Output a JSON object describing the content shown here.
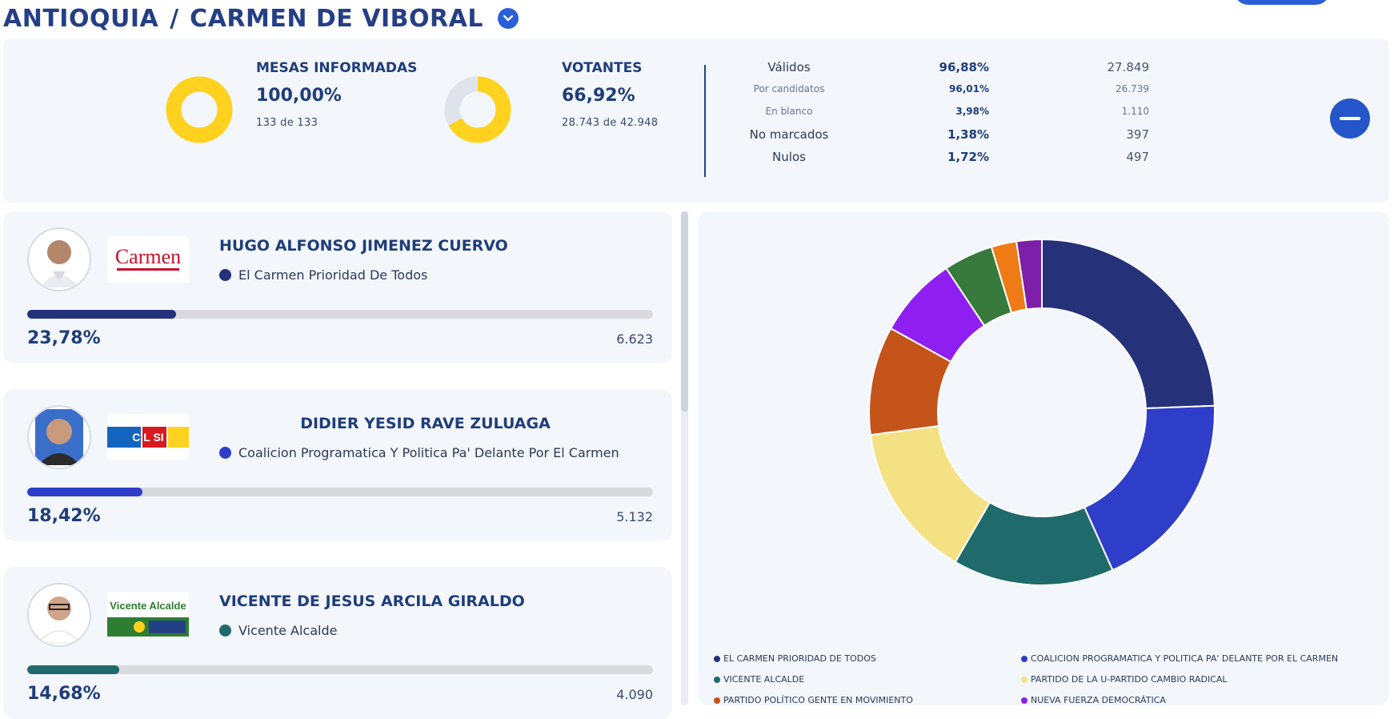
{
  "header": {
    "department": "ANTIOQUIA",
    "separator": "/",
    "municipality": "CARMEN DE VIBORAL"
  },
  "summary": {
    "mesas": {
      "title": "MESAS INFORMADAS",
      "pct": "100,00%",
      "count": "133  de  133",
      "fraction": 1.0
    },
    "votantes": {
      "title": "VOTANTES",
      "pct": "66,92%",
      "count": "28.743  de  42.948",
      "fraction": 0.6692
    },
    "breakdown": [
      {
        "label": "Válidos",
        "pct": "96,88%",
        "value": "27.849",
        "size": "big"
      },
      {
        "label": "Por candidatos",
        "pct": "96,01%",
        "value": "26.739",
        "size": "small"
      },
      {
        "label": "En blanco",
        "pct": "3,98%",
        "value": "1.110",
        "size": "small"
      },
      {
        "label": "No marcados",
        "pct": "1,38%",
        "value": "397",
        "size": "big"
      },
      {
        "label": "Nulos",
        "pct": "1,72%",
        "value": "497",
        "size": "big"
      }
    ],
    "colors": {
      "fill": "#ffd21f",
      "track": "#dfe3ec"
    }
  },
  "candidates": [
    {
      "name": "HUGO ALFONSO JIMENEZ CUERVO",
      "party": "El Carmen Prioridad De Todos",
      "pct": "23,78%",
      "votes": "6.623",
      "fraction": 0.2378,
      "color": "#25327a",
      "logo_text": "Carmen",
      "centered": false
    },
    {
      "name": "DIDIER YESID RAVE ZULUAGA",
      "party": "Coalicion Programatica Y Politica Pa' Delante Por El Carmen",
      "pct": "18,42%",
      "votes": "5.132",
      "fraction": 0.1842,
      "color": "#2e3ec9",
      "logo_text": "C L SI",
      "centered": true
    },
    {
      "name": "VICENTE DE JESUS ARCILA GIRALDO",
      "party": "Vicente Alcalde",
      "pct": "14,68%",
      "votes": "4.090",
      "fraction": 0.1468,
      "color": "#1f6a6a",
      "logo_text": "Vicente Alcalde",
      "centered": false
    }
  ],
  "chart_data": {
    "type": "pie",
    "donut": true,
    "title": "",
    "categories": [
      "EL CARMEN PRIORIDAD DE TODOS",
      "COALICION PROGRAMATICA Y POLITICA PA' DELANTE POR EL CARMEN",
      "VICENTE ALCALDE",
      "PARTIDO DE LA U-PARTIDO CAMBIO RADICAL",
      "PARTIDO POLÍTICO GENTE EN MOVIMIENTO",
      "NUEVA FUERZA DEMOCRÁTICA",
      "",
      "",
      ""
    ],
    "values": [
      23.78,
      18.42,
      14.68,
      14.2,
      9.9,
      7.4,
      4.5,
      2.3,
      2.3
    ],
    "colors": [
      "#25327a",
      "#2e3ec9",
      "#1f6a6a",
      "#f4e184",
      "#c4541a",
      "#8e1ff0",
      "#377a3b",
      "#ee7b16",
      "#7d1fa8"
    ],
    "legend_position": "bottom"
  }
}
